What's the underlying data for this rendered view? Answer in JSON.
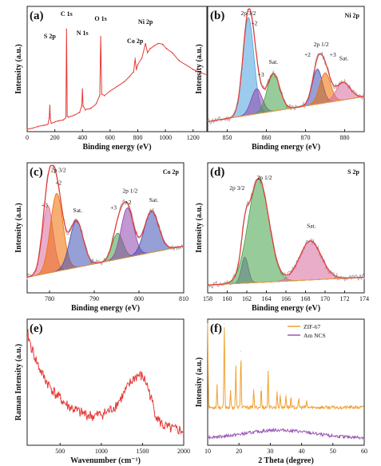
{
  "chart_data": [
    {
      "panel": "(a)",
      "type": "line",
      "xlabel": "Binding energy (eV)",
      "ylabel": "Intensity (a.u.)",
      "xlim": [
        0,
        1300
      ],
      "xticks": [
        0,
        200,
        400,
        600,
        800,
        1000,
        1200
      ],
      "color": "#e53935",
      "peak_labels": [
        {
          "label": "S 2p",
          "x": 164
        },
        {
          "label": "C 1s",
          "x": 285
        },
        {
          "label": "N 1s",
          "x": 400
        },
        {
          "label": "O 1s",
          "x": 532
        },
        {
          "label": "Co 2p",
          "x": 781
        },
        {
          "label": "Ni 2p",
          "x": 856
        }
      ],
      "series": [
        {
          "x": [
            0,
            40,
            80,
            120,
            150,
            160,
            164,
            168,
            175,
            200,
            230,
            260,
            280,
            285,
            290,
            300,
            340,
            380,
            395,
            400,
            405,
            420,
            460,
            500,
            525,
            532,
            539,
            560,
            600,
            650,
            700,
            740,
            770,
            781,
            790,
            800,
            830,
            856,
            870,
            890,
            920,
            950,
            980,
            1010,
            1050,
            1100,
            1150,
            1200,
            1250,
            1290
          ],
          "y": [
            0.02,
            0.03,
            0.04,
            0.05,
            0.06,
            0.12,
            0.22,
            0.11,
            0.07,
            0.08,
            0.09,
            0.1,
            0.12,
            0.86,
            0.13,
            0.12,
            0.14,
            0.16,
            0.22,
            0.36,
            0.21,
            0.18,
            0.2,
            0.24,
            0.3,
            0.8,
            0.32,
            0.3,
            0.34,
            0.38,
            0.42,
            0.46,
            0.5,
            0.62,
            0.52,
            0.56,
            0.62,
            0.74,
            0.66,
            0.7,
            0.72,
            0.74,
            0.73,
            0.7,
            0.66,
            0.6,
            0.56,
            0.52,
            0.5,
            0.48
          ]
        }
      ]
    },
    {
      "panel": "(b)",
      "title": "Ni 2p",
      "type": "area",
      "xlabel": "Binding energy (eV)",
      "ylabel": "Intensity (a.u.)",
      "xlim": [
        845,
        885
      ],
      "xticks": [
        850,
        860,
        870,
        880
      ],
      "background": {
        "x": [
          845,
          885
        ],
        "y": [
          0.08,
          0.28
        ]
      },
      "components": [
        {
          "label": "2p 3/2",
          "sub": "+2",
          "center": 855.4,
          "amp": 0.78,
          "width": 1.4,
          "color": "#4aa3df"
        },
        {
          "label": "+3",
          "center": 857.5,
          "amp": 0.2,
          "width": 1.4,
          "color": "#8e44ad"
        },
        {
          "label": "Sat.",
          "center": 861.8,
          "amp": 0.3,
          "width": 1.6,
          "color": "#43a047"
        },
        {
          "label": "2p 1/2",
          "sub": "+2",
          "center": 873.0,
          "amp": 0.28,
          "width": 1.3,
          "color": "#3f51b5"
        },
        {
          "label": "+3",
          "center": 875.0,
          "amp": 0.24,
          "width": 1.4,
          "color": "#ef6c00"
        },
        {
          "label": "Sat.",
          "center": 879.6,
          "amp": 0.14,
          "width": 1.8,
          "color": "#d86a9c"
        }
      ],
      "labels": [
        "2p 3/2",
        "+2",
        "+3",
        "Sat.",
        "+2",
        "2p 1/2",
        "+3",
        "Sat."
      ]
    },
    {
      "panel": "(c)",
      "title": "Co 2p",
      "type": "area",
      "xlabel": "Binding energy (eV)",
      "ylabel": "Intensity (a.u.)",
      "xlim": [
        775,
        810
      ],
      "xticks": [
        780,
        790,
        800,
        810
      ],
      "background": {
        "x": [
          775,
          810
        ],
        "y": [
          0.12,
          0.36
        ]
      },
      "components": [
        {
          "label": "+3",
          "center": 779.6,
          "amp": 0.52,
          "width": 1.2,
          "color": "#d86a9c"
        },
        {
          "label": "2p 3/2",
          "sub": "+2",
          "center": 781.6,
          "amp": 0.6,
          "width": 1.4,
          "color": "#ef6c00"
        },
        {
          "label": "Sat.",
          "center": 786.0,
          "amp": 0.36,
          "width": 1.5,
          "color": "#3f51b5"
        },
        {
          "label": "+3",
          "center": 795.2,
          "amp": 0.2,
          "width": 1.2,
          "color": "#43a047"
        },
        {
          "label": "2p 1/2",
          "sub": "+2",
          "center": 797.4,
          "amp": 0.38,
          "width": 1.4,
          "color": "#8e44ad"
        },
        {
          "label": "Sat.",
          "center": 802.8,
          "amp": 0.32,
          "width": 1.6,
          "color": "#3f51b5"
        }
      ],
      "labels": [
        "2p 3/2",
        "+2",
        "+3",
        "Sat.",
        "+3",
        "2p 1/2",
        "+2",
        "Sat."
      ]
    },
    {
      "panel": "(d)",
      "title": "S 2p",
      "type": "area",
      "xlabel": "Binding energy (eV)",
      "ylabel": "Intensity (a.u.)",
      "xlim": [
        158,
        174
      ],
      "xticks": [
        158,
        160,
        162,
        164,
        166,
        168,
        170,
        172,
        174
      ],
      "background": {
        "x": [
          158,
          174
        ],
        "y": [
          0.06,
          0.12
        ]
      },
      "components": [
        {
          "label": "2p 3/2",
          "center": 161.8,
          "amp": 0.2,
          "width": 0.35,
          "color": "#7e57c2"
        },
        {
          "label": "2p 1/2",
          "center": 163.2,
          "amp": 0.8,
          "width": 1.05,
          "color": "#43a047"
        },
        {
          "label": "Sat.",
          "center": 168.5,
          "amp": 0.3,
          "width": 1.1,
          "color": "#d86a9c"
        }
      ],
      "labels": [
        "2p 3/2",
        "2p 1/2",
        "Sat."
      ]
    },
    {
      "panel": "(e)",
      "type": "line",
      "xlabel": "Wavenumber (cm⁻¹)",
      "ylabel": "Raman Intensity (a.u.)",
      "xlim": [
        100,
        2000
      ],
      "xticks": [
        500,
        1000,
        1500,
        2000
      ],
      "color": "#e53935",
      "series": [
        {
          "x": [
            100,
            150,
            200,
            250,
            300,
            350,
            400,
            450,
            500,
            550,
            600,
            650,
            700,
            750,
            800,
            850,
            900,
            950,
            1000,
            1050,
            1100,
            1150,
            1200,
            1250,
            1300,
            1350,
            1400,
            1450,
            1500,
            1550,
            1600,
            1650,
            1700,
            1750,
            1800,
            1850,
            1900,
            1950,
            2000
          ],
          "y": [
            0.95,
            0.82,
            0.72,
            0.63,
            0.56,
            0.5,
            0.45,
            0.4,
            0.37,
            0.33,
            0.3,
            0.28,
            0.26,
            0.24,
            0.23,
            0.22,
            0.21,
            0.22,
            0.23,
            0.24,
            0.26,
            0.29,
            0.33,
            0.38,
            0.44,
            0.5,
            0.55,
            0.57,
            0.56,
            0.5,
            0.38,
            0.25,
            0.17,
            0.13,
            0.11,
            0.1,
            0.09,
            0.09,
            0.08
          ]
        }
      ]
    },
    {
      "panel": "(f)",
      "type": "line",
      "xlabel": "2 Theta (degree)",
      "ylabel": "Intensity (a.u.)",
      "xlim": [
        10,
        60
      ],
      "xticks": [
        10,
        20,
        30,
        40,
        50,
        60
      ],
      "legend_position": "top-right",
      "series": [
        {
          "name": "ZIF-67",
          "color": "#f0a030",
          "base": 0.3,
          "peaks": [
            {
              "x": 7.4,
              "h": 0.95
            },
            {
              "x": 10.4,
              "h": 0.25
            },
            {
              "x": 12.7,
              "h": 0.92
            },
            {
              "x": 14.7,
              "h": 0.18
            },
            {
              "x": 16.4,
              "h": 0.45
            },
            {
              "x": 18.0,
              "h": 0.62
            },
            {
              "x": 22.1,
              "h": 0.2
            },
            {
              "x": 24.5,
              "h": 0.22
            },
            {
              "x": 26.7,
              "h": 0.4
            },
            {
              "x": 29.6,
              "h": 0.18
            },
            {
              "x": 30.6,
              "h": 0.15
            },
            {
              "x": 32.4,
              "h": 0.14
            },
            {
              "x": 34.0,
              "h": 0.12
            },
            {
              "x": 36.5,
              "h": 0.1
            },
            {
              "x": 39.0,
              "h": 0.08
            }
          ]
        },
        {
          "name": "Am NCS",
          "color": "#9b59b6",
          "base": 0.06,
          "hump": {
            "x": 33,
            "h": 0.06,
            "w": 10
          }
        }
      ]
    }
  ]
}
